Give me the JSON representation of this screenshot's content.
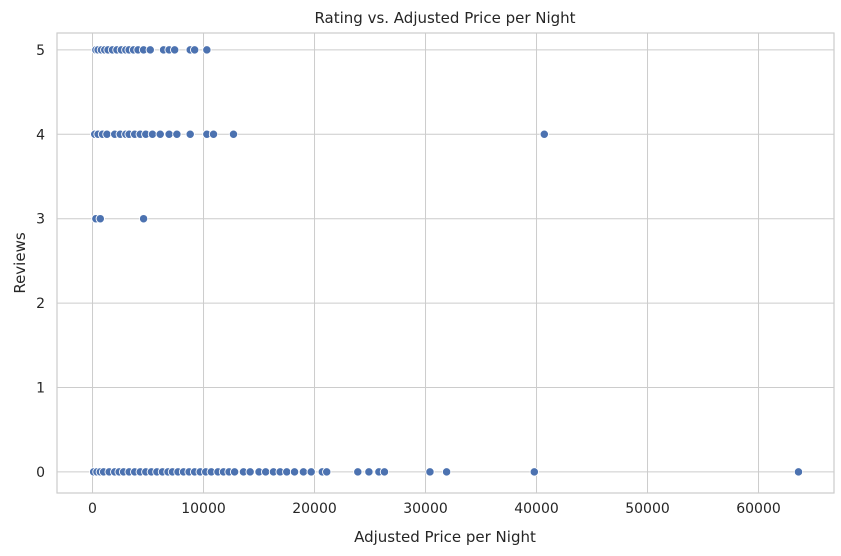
{
  "chart_data": {
    "type": "scatter",
    "title": "Rating vs. Adjusted Price per Night",
    "xlabel": "Adjusted Price per Night",
    "ylabel": "Reviews",
    "xlim": [
      -3200,
      66800
    ],
    "ylim": [
      -0.25,
      5.2
    ],
    "xticks": [
      0,
      10000,
      20000,
      30000,
      40000,
      50000,
      60000
    ],
    "yticks": [
      0,
      1,
      2,
      3,
      4,
      5
    ],
    "grid": true,
    "legend": "none",
    "marker_color": "#4c72b0",
    "marker_edge": "#ffffff",
    "points": [
      {
        "x": 300,
        "y": 5
      },
      {
        "x": 500,
        "y": 5
      },
      {
        "x": 800,
        "y": 5
      },
      {
        "x": 1100,
        "y": 5
      },
      {
        "x": 1400,
        "y": 5
      },
      {
        "x": 1800,
        "y": 5
      },
      {
        "x": 2200,
        "y": 5
      },
      {
        "x": 2600,
        "y": 5
      },
      {
        "x": 3000,
        "y": 5
      },
      {
        "x": 3300,
        "y": 5
      },
      {
        "x": 3700,
        "y": 5
      },
      {
        "x": 4100,
        "y": 5
      },
      {
        "x": 4600,
        "y": 5
      },
      {
        "x": 5200,
        "y": 5
      },
      {
        "x": 6400,
        "y": 5
      },
      {
        "x": 6900,
        "y": 5
      },
      {
        "x": 7400,
        "y": 5
      },
      {
        "x": 8800,
        "y": 5
      },
      {
        "x": 9200,
        "y": 5
      },
      {
        "x": 10300,
        "y": 5
      },
      {
        "x": 200,
        "y": 4
      },
      {
        "x": 500,
        "y": 4
      },
      {
        "x": 900,
        "y": 4
      },
      {
        "x": 1300,
        "y": 4
      },
      {
        "x": 2000,
        "y": 4
      },
      {
        "x": 2500,
        "y": 4
      },
      {
        "x": 3000,
        "y": 4
      },
      {
        "x": 3300,
        "y": 4
      },
      {
        "x": 3800,
        "y": 4
      },
      {
        "x": 4300,
        "y": 4
      },
      {
        "x": 4800,
        "y": 4
      },
      {
        "x": 5400,
        "y": 4
      },
      {
        "x": 6100,
        "y": 4
      },
      {
        "x": 6900,
        "y": 4
      },
      {
        "x": 7600,
        "y": 4
      },
      {
        "x": 8800,
        "y": 4
      },
      {
        "x": 10300,
        "y": 4
      },
      {
        "x": 10900,
        "y": 4
      },
      {
        "x": 12700,
        "y": 4
      },
      {
        "x": 40700,
        "y": 4
      },
      {
        "x": 300,
        "y": 3
      },
      {
        "x": 700,
        "y": 3
      },
      {
        "x": 4600,
        "y": 3
      },
      {
        "x": 100,
        "y": 0
      },
      {
        "x": 400,
        "y": 0
      },
      {
        "x": 700,
        "y": 0
      },
      {
        "x": 1000,
        "y": 0
      },
      {
        "x": 1500,
        "y": 0
      },
      {
        "x": 2000,
        "y": 0
      },
      {
        "x": 2400,
        "y": 0
      },
      {
        "x": 2800,
        "y": 0
      },
      {
        "x": 3300,
        "y": 0
      },
      {
        "x": 3800,
        "y": 0
      },
      {
        "x": 4300,
        "y": 0
      },
      {
        "x": 4800,
        "y": 0
      },
      {
        "x": 5300,
        "y": 0
      },
      {
        "x": 5800,
        "y": 0
      },
      {
        "x": 6300,
        "y": 0
      },
      {
        "x": 6800,
        "y": 0
      },
      {
        "x": 7200,
        "y": 0
      },
      {
        "x": 7700,
        "y": 0
      },
      {
        "x": 8200,
        "y": 0
      },
      {
        "x": 8700,
        "y": 0
      },
      {
        "x": 9200,
        "y": 0
      },
      {
        "x": 9700,
        "y": 0
      },
      {
        "x": 10200,
        "y": 0
      },
      {
        "x": 10700,
        "y": 0
      },
      {
        "x": 11300,
        "y": 0
      },
      {
        "x": 11800,
        "y": 0
      },
      {
        "x": 12300,
        "y": 0
      },
      {
        "x": 12800,
        "y": 0
      },
      {
        "x": 13600,
        "y": 0
      },
      {
        "x": 14200,
        "y": 0
      },
      {
        "x": 15000,
        "y": 0
      },
      {
        "x": 15600,
        "y": 0
      },
      {
        "x": 16300,
        "y": 0
      },
      {
        "x": 16900,
        "y": 0
      },
      {
        "x": 17500,
        "y": 0
      },
      {
        "x": 18200,
        "y": 0
      },
      {
        "x": 19000,
        "y": 0
      },
      {
        "x": 19700,
        "y": 0
      },
      {
        "x": 20700,
        "y": 0
      },
      {
        "x": 21100,
        "y": 0
      },
      {
        "x": 23900,
        "y": 0
      },
      {
        "x": 24900,
        "y": 0
      },
      {
        "x": 25800,
        "y": 0
      },
      {
        "x": 26300,
        "y": 0
      },
      {
        "x": 30400,
        "y": 0
      },
      {
        "x": 31900,
        "y": 0
      },
      {
        "x": 39800,
        "y": 0
      },
      {
        "x": 63600,
        "y": 0
      }
    ]
  }
}
